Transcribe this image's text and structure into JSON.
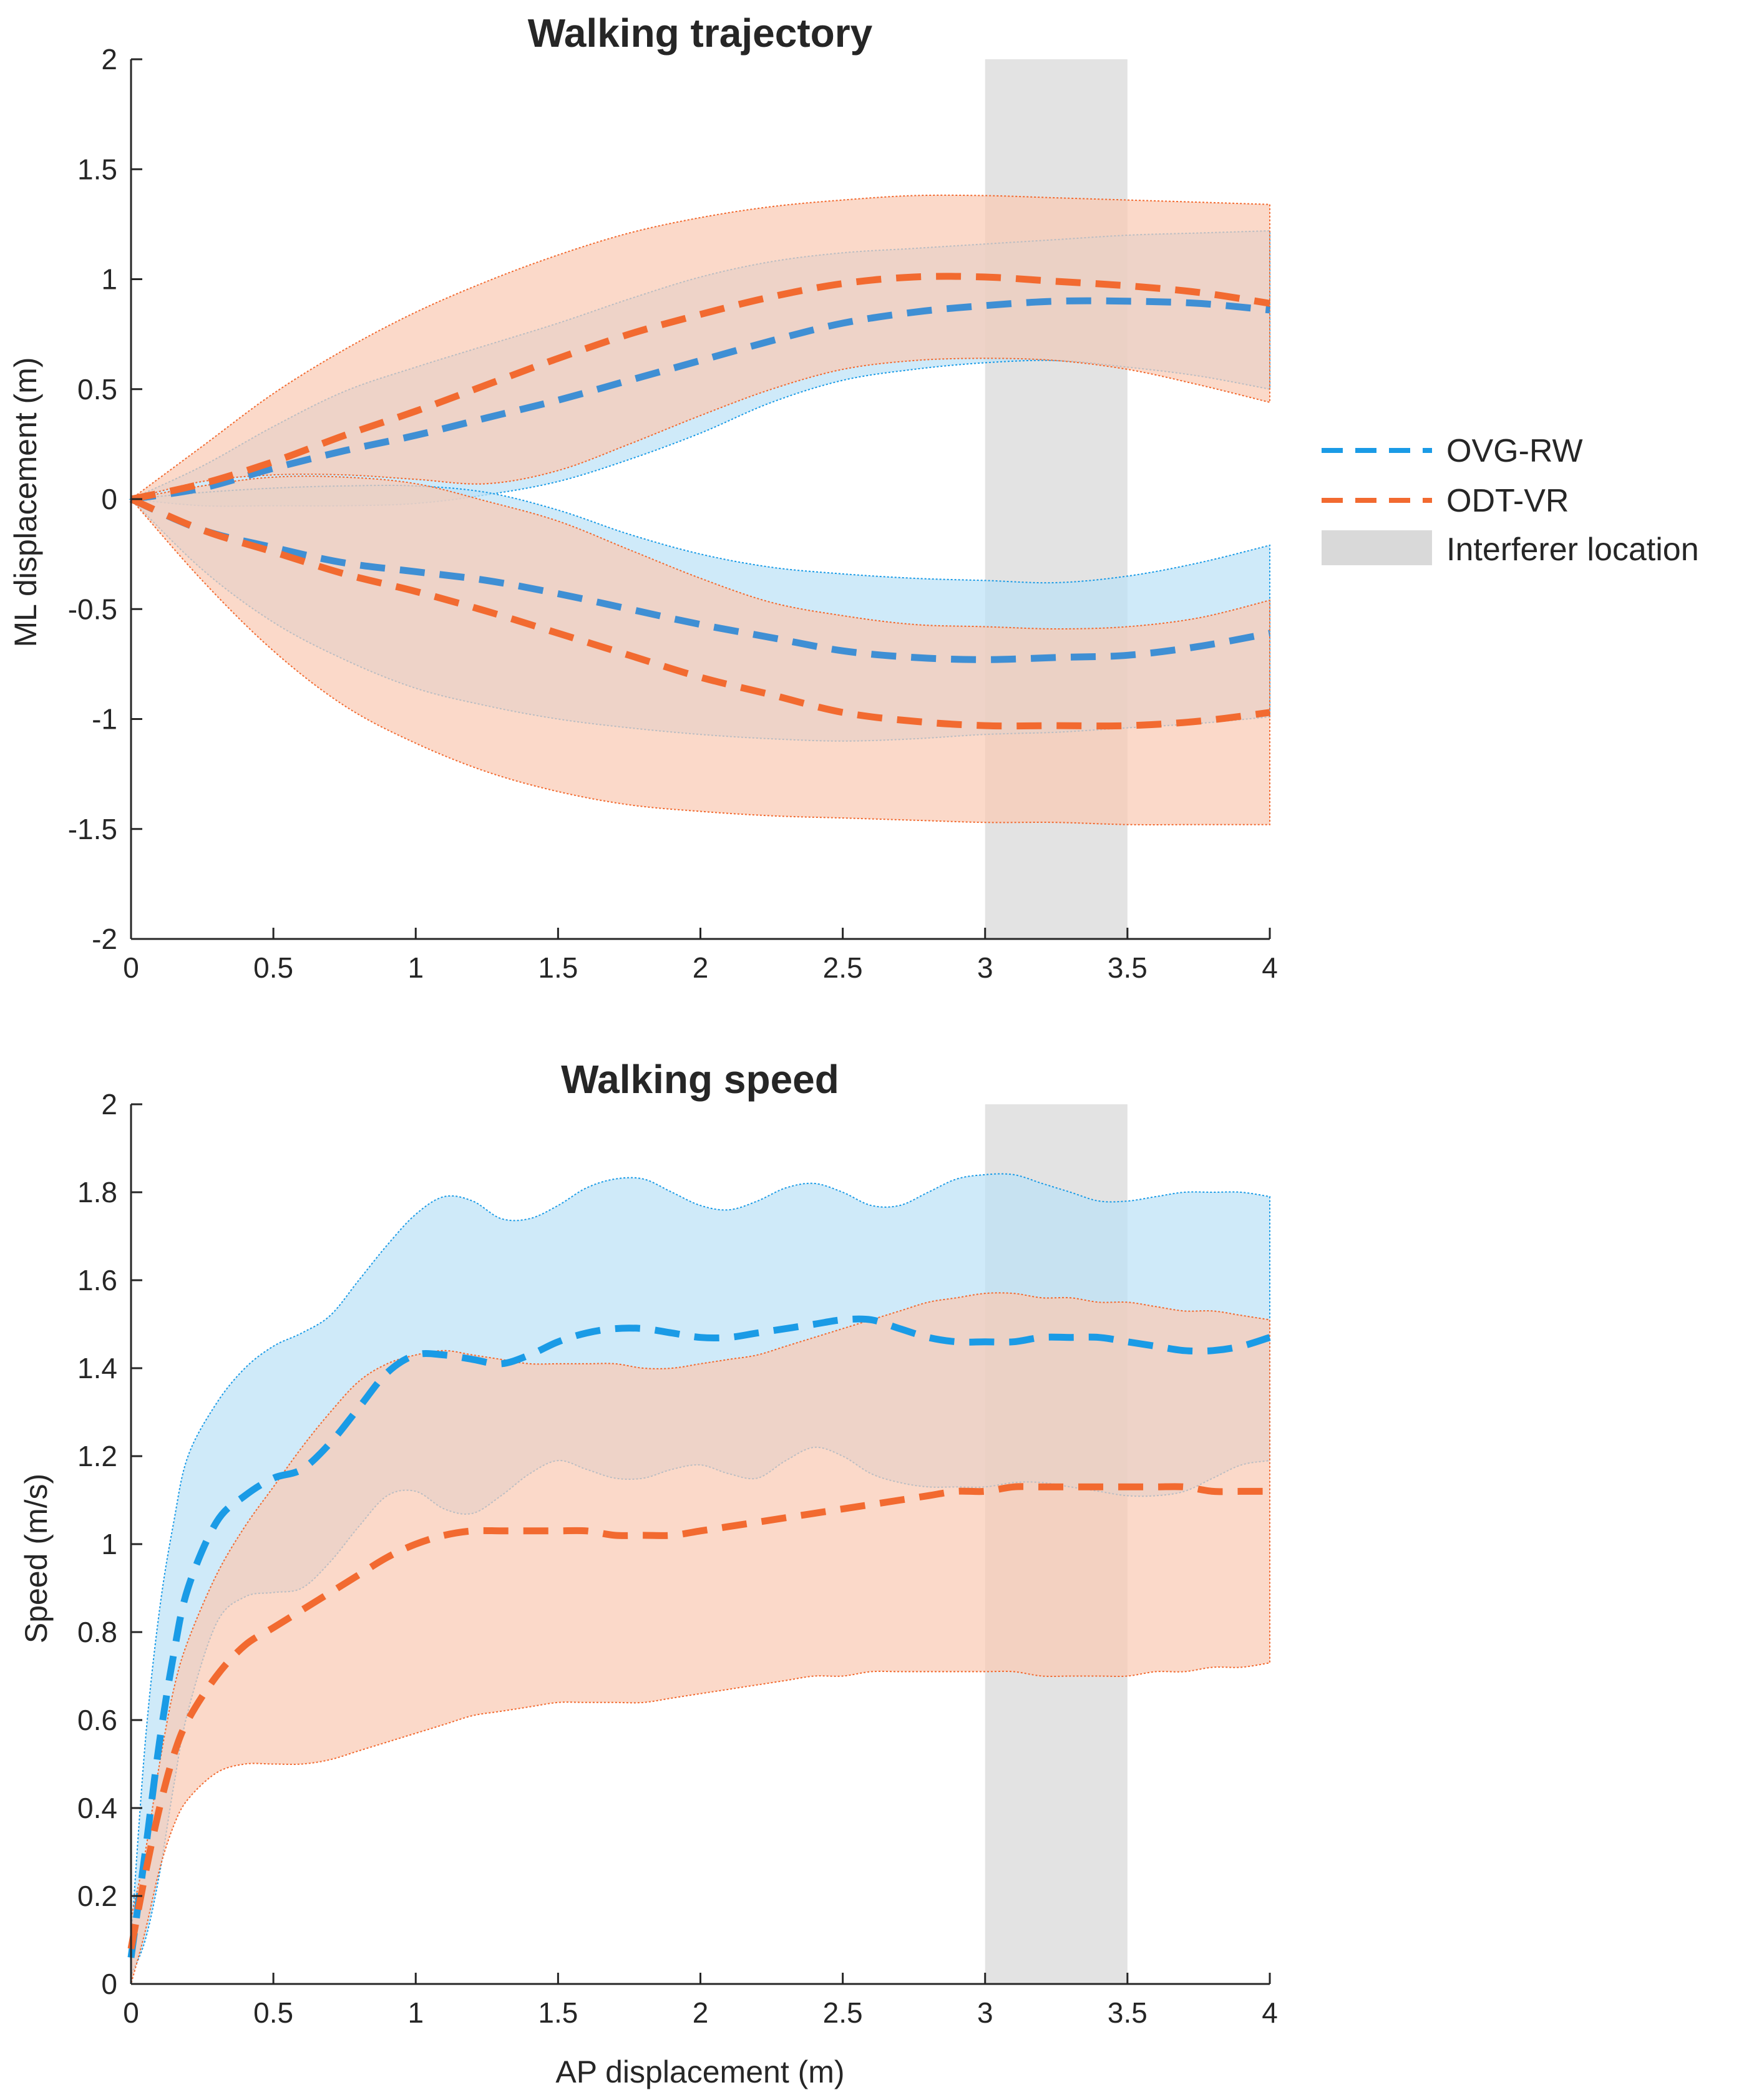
{
  "chart_data": [
    {
      "type": "line",
      "title": "Walking trajectory",
      "xlabel": "",
      "ylabel": "ML displacement (m)",
      "xlim": [
        0,
        4
      ],
      "ylim": [
        -2,
        2
      ],
      "xticks": [
        "0",
        "0.5",
        "1",
        "1.5",
        "2",
        "2.5",
        "3",
        "3.5",
        "4"
      ],
      "yticks": [
        "-2",
        "-1.5",
        "-1",
        "-0.5",
        "0",
        "0.5",
        "1",
        "1.5",
        "2"
      ],
      "grid": false,
      "interferer_region": {
        "x": [
          3,
          3.5
        ]
      },
      "x": [
        0,
        0.25,
        0.5,
        0.75,
        1,
        1.25,
        1.5,
        1.75,
        2,
        2.25,
        2.5,
        2.75,
        3,
        3.25,
        3.5,
        3.75,
        4
      ],
      "series": [
        {
          "name": "OVG-RW",
          "group": "upper",
          "mean": [
            0,
            0.05,
            0.14,
            0.22,
            0.29,
            0.37,
            0.45,
            0.54,
            0.63,
            0.72,
            0.8,
            0.85,
            0.88,
            0.9,
            0.9,
            0.89,
            0.86
          ],
          "lower": [
            0,
            -0.03,
            -0.03,
            -0.03,
            -0.02,
            0.02,
            0.08,
            0.18,
            0.3,
            0.44,
            0.54,
            0.59,
            0.62,
            0.63,
            0.6,
            0.56,
            0.5
          ],
          "upper": [
            0,
            0.15,
            0.33,
            0.49,
            0.6,
            0.7,
            0.8,
            0.91,
            1.01,
            1.08,
            1.12,
            1.14,
            1.16,
            1.18,
            1.2,
            1.21,
            1.22
          ]
        },
        {
          "name": "ODT-VR",
          "group": "upper",
          "mean": [
            0,
            0.07,
            0.17,
            0.29,
            0.4,
            0.52,
            0.64,
            0.75,
            0.84,
            0.92,
            0.98,
            1.01,
            1.01,
            0.99,
            0.97,
            0.94,
            0.89
          ],
          "lower": [
            0,
            0.08,
            0.11,
            0.11,
            0.09,
            0.07,
            0.13,
            0.25,
            0.38,
            0.5,
            0.59,
            0.63,
            0.64,
            0.63,
            0.59,
            0.52,
            0.44
          ],
          "upper": [
            0,
            0.24,
            0.48,
            0.68,
            0.85,
            0.99,
            1.11,
            1.21,
            1.28,
            1.33,
            1.36,
            1.38,
            1.38,
            1.37,
            1.36,
            1.35,
            1.34
          ]
        },
        {
          "name": "OVG-RW",
          "group": "lower",
          "mean": [
            0,
            -0.14,
            -0.22,
            -0.29,
            -0.33,
            -0.37,
            -0.43,
            -0.5,
            -0.57,
            -0.63,
            -0.69,
            -0.72,
            -0.73,
            -0.72,
            -0.71,
            -0.67,
            -0.61
          ],
          "lower": [
            0,
            -0.32,
            -0.56,
            -0.73,
            -0.86,
            -0.94,
            -1.0,
            -1.04,
            -1.07,
            -1.09,
            -1.1,
            -1.09,
            -1.07,
            -1.06,
            -1.04,
            -1.02,
            -0.99
          ],
          "upper": [
            0,
            0.03,
            0.05,
            0.06,
            0.06,
            0.03,
            -0.05,
            -0.16,
            -0.25,
            -0.31,
            -0.34,
            -0.36,
            -0.37,
            -0.38,
            -0.35,
            -0.29,
            -0.21
          ]
        },
        {
          "name": "ODT-VR",
          "group": "lower",
          "mean": [
            0,
            -0.14,
            -0.24,
            -0.34,
            -0.42,
            -0.51,
            -0.61,
            -0.71,
            -0.81,
            -0.89,
            -0.97,
            -1.01,
            -1.03,
            -1.03,
            -1.03,
            -1.01,
            -0.97
          ],
          "lower": [
            0,
            -0.37,
            -0.69,
            -0.94,
            -1.11,
            -1.24,
            -1.33,
            -1.39,
            -1.42,
            -1.44,
            -1.45,
            -1.46,
            -1.47,
            -1.47,
            -1.48,
            -1.48,
            -1.48
          ],
          "upper": [
            0,
            0.06,
            0.1,
            0.1,
            0.07,
            -0.01,
            -0.1,
            -0.23,
            -0.36,
            -0.47,
            -0.53,
            -0.57,
            -0.58,
            -0.59,
            -0.58,
            -0.54,
            -0.46
          ]
        }
      ]
    },
    {
      "type": "line",
      "title": "Walking speed",
      "xlabel": "AP displacement (m)",
      "ylabel": "Speed (m/s)",
      "xlim": [
        0,
        4
      ],
      "ylim": [
        0,
        2
      ],
      "xticks": [
        "0",
        "0.5",
        "1",
        "1.5",
        "2",
        "2.5",
        "3",
        "3.5",
        "4"
      ],
      "yticks": [
        "0",
        "0.2",
        "0.4",
        "0.6",
        "0.8",
        "1",
        "1.2",
        "1.4",
        "1.6",
        "1.8",
        "2"
      ],
      "grid": false,
      "interferer_region": {
        "x": [
          3,
          3.5
        ]
      },
      "series": [
        {
          "name": "OVG-RW",
          "x": [
            0,
            0.05,
            0.1,
            0.15,
            0.2,
            0.3,
            0.4,
            0.5,
            0.6,
            0.7,
            0.8,
            0.9,
            1.0,
            1.1,
            1.2,
            1.3,
            1.4,
            1.5,
            1.6,
            1.7,
            1.8,
            1.9,
            2.0,
            2.1,
            2.2,
            2.3,
            2.4,
            2.5,
            2.6,
            2.7,
            2.8,
            2.9,
            3.0,
            3.1,
            3.2,
            3.3,
            3.4,
            3.5,
            3.6,
            3.7,
            3.8,
            3.9,
            4.0
          ],
          "mean": [
            0.06,
            0.3,
            0.55,
            0.75,
            0.9,
            1.05,
            1.11,
            1.15,
            1.17,
            1.23,
            1.31,
            1.39,
            1.43,
            1.43,
            1.42,
            1.41,
            1.43,
            1.46,
            1.48,
            1.49,
            1.49,
            1.48,
            1.47,
            1.47,
            1.48,
            1.49,
            1.5,
            1.51,
            1.51,
            1.49,
            1.47,
            1.46,
            1.46,
            1.46,
            1.47,
            1.47,
            1.47,
            1.46,
            1.45,
            1.44,
            1.44,
            1.45,
            1.47
          ],
          "lower": [
            0.02,
            0.1,
            0.25,
            0.45,
            0.62,
            0.82,
            0.88,
            0.89,
            0.9,
            0.96,
            1.04,
            1.11,
            1.12,
            1.08,
            1.07,
            1.11,
            1.16,
            1.19,
            1.17,
            1.15,
            1.15,
            1.17,
            1.18,
            1.16,
            1.15,
            1.19,
            1.22,
            1.2,
            1.16,
            1.14,
            1.13,
            1.13,
            1.13,
            1.14,
            1.14,
            1.13,
            1.12,
            1.11,
            1.11,
            1.12,
            1.15,
            1.18,
            1.19
          ],
          "upper": [
            0.1,
            0.55,
            0.85,
            1.05,
            1.2,
            1.32,
            1.4,
            1.45,
            1.48,
            1.52,
            1.6,
            1.68,
            1.75,
            1.79,
            1.78,
            1.74,
            1.74,
            1.77,
            1.81,
            1.83,
            1.83,
            1.8,
            1.77,
            1.76,
            1.78,
            1.81,
            1.82,
            1.8,
            1.77,
            1.77,
            1.8,
            1.83,
            1.84,
            1.84,
            1.82,
            1.8,
            1.78,
            1.78,
            1.79,
            1.8,
            1.8,
            1.8,
            1.79
          ]
        },
        {
          "name": "ODT-VR",
          "x": [
            0,
            0.05,
            0.1,
            0.15,
            0.2,
            0.3,
            0.4,
            0.5,
            0.6,
            0.7,
            0.8,
            0.9,
            1.0,
            1.1,
            1.2,
            1.3,
            1.4,
            1.5,
            1.6,
            1.7,
            1.8,
            1.9,
            2.0,
            2.1,
            2.2,
            2.3,
            2.4,
            2.5,
            2.6,
            2.7,
            2.8,
            2.9,
            3.0,
            3.1,
            3.2,
            3.3,
            3.4,
            3.5,
            3.6,
            3.7,
            3.8,
            3.9,
            4.0
          ],
          "mean": [
            0.08,
            0.25,
            0.4,
            0.52,
            0.6,
            0.7,
            0.77,
            0.81,
            0.85,
            0.89,
            0.93,
            0.97,
            1.0,
            1.02,
            1.03,
            1.03,
            1.03,
            1.03,
            1.03,
            1.02,
            1.02,
            1.02,
            1.03,
            1.04,
            1.05,
            1.06,
            1.07,
            1.08,
            1.09,
            1.1,
            1.11,
            1.12,
            1.12,
            1.13,
            1.13,
            1.13,
            1.13,
            1.13,
            1.13,
            1.13,
            1.12,
            1.12,
            1.12
          ],
          "lower": [
            0.0,
            0.12,
            0.26,
            0.36,
            0.42,
            0.48,
            0.5,
            0.5,
            0.5,
            0.51,
            0.53,
            0.55,
            0.57,
            0.59,
            0.61,
            0.62,
            0.63,
            0.64,
            0.64,
            0.64,
            0.64,
            0.65,
            0.66,
            0.67,
            0.68,
            0.69,
            0.7,
            0.7,
            0.71,
            0.71,
            0.71,
            0.71,
            0.71,
            0.71,
            0.7,
            0.7,
            0.7,
            0.7,
            0.71,
            0.71,
            0.72,
            0.72,
            0.73
          ],
          "upper": [
            0.15,
            0.3,
            0.5,
            0.67,
            0.78,
            0.93,
            1.04,
            1.13,
            1.22,
            1.3,
            1.37,
            1.41,
            1.43,
            1.44,
            1.43,
            1.42,
            1.41,
            1.41,
            1.41,
            1.41,
            1.4,
            1.4,
            1.41,
            1.42,
            1.43,
            1.45,
            1.47,
            1.49,
            1.51,
            1.53,
            1.55,
            1.56,
            1.57,
            1.57,
            1.56,
            1.56,
            1.55,
            1.55,
            1.54,
            1.53,
            1.53,
            1.52,
            1.51
          ]
        }
      ]
    }
  ],
  "legend": {
    "placement": "right of top chart",
    "items": [
      {
        "label": "OVG-RW",
        "kind": "dashed-line",
        "color": "#1a9be6"
      },
      {
        "label": "ODT-VR",
        "kind": "dashed-line",
        "color": "#f26a30"
      },
      {
        "label": "Interferer location",
        "kind": "patch",
        "color": "#d9d9d9"
      }
    ]
  },
  "colors": {
    "ovg_line": "#1a9be6",
    "ovg_mean": "#3f8fd4",
    "ovg_fill": "#bde2f7",
    "odt_line": "#f26a30",
    "odt_fill": "#f9cbb4",
    "interferer": "#d9d9d9",
    "axis": "#262626"
  }
}
